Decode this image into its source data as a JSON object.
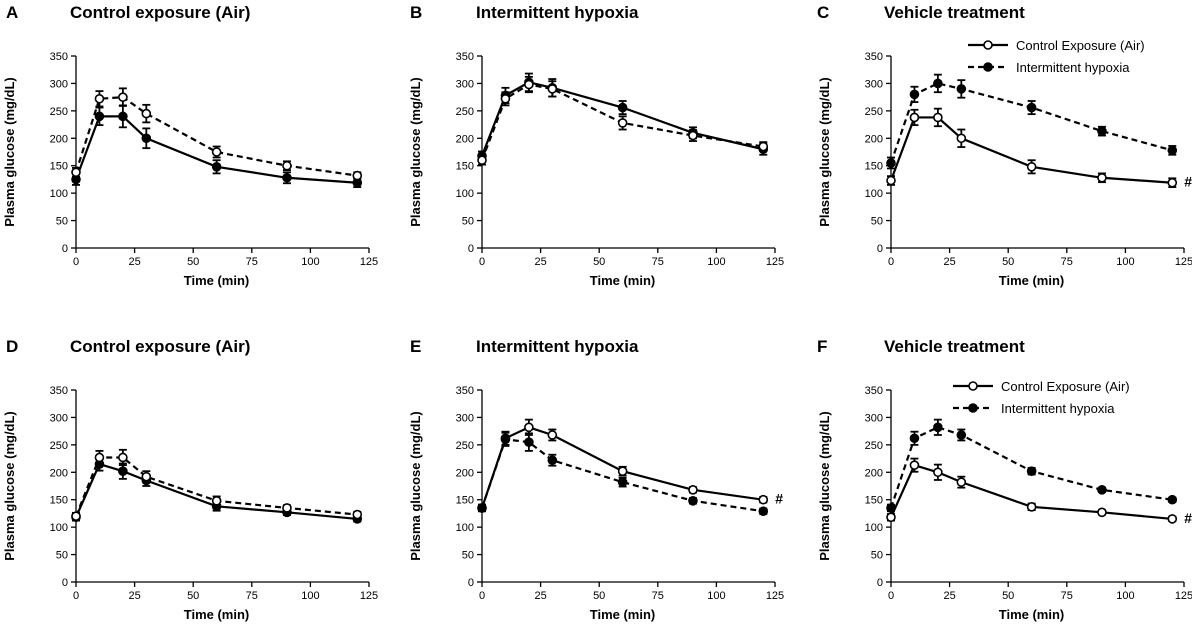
{
  "figure": {
    "x_axis_label": "Time  (min)",
    "y_axis_label": "Plasma glucose (mg/dL)"
  },
  "chart_data": [
    {
      "type": "line",
      "letter": "A",
      "title": "Control exposure (Air)",
      "xlabel": "Time  (min)",
      "ylabel": "Plasma glucose (mg/dL)",
      "xlim": [
        0,
        125
      ],
      "ylim": [
        0,
        350
      ],
      "xticks": [
        0,
        25,
        50,
        75,
        100,
        125
      ],
      "yticks": [
        0,
        50,
        100,
        150,
        200,
        250,
        300,
        350
      ],
      "x": [
        0,
        10,
        20,
        30,
        60,
        90,
        120
      ],
      "series": [
        {
          "name": "Solid line / filled circles",
          "style": "solid",
          "marker": "filled",
          "values": [
            125,
            240,
            240,
            200,
            148,
            128,
            119
          ],
          "errors": [
            10,
            16,
            20,
            18,
            12,
            10,
            8
          ]
        },
        {
          "name": "Dashed line / open circles",
          "style": "dashed",
          "marker": "open",
          "values": [
            138,
            272,
            275,
            245,
            175,
            150,
            132
          ],
          "errors": [
            8,
            14,
            16,
            16,
            10,
            8,
            6
          ]
        }
      ],
      "legend": null,
      "annotation": ""
    },
    {
      "type": "line",
      "letter": "B",
      "title": "Intermittent hypoxia",
      "xlabel": "Time  (min)",
      "ylabel": "Plasma glucose (mg/dL)",
      "xlim": [
        0,
        125
      ],
      "ylim": [
        0,
        350
      ],
      "xticks": [
        0,
        25,
        50,
        75,
        100,
        125
      ],
      "yticks": [
        0,
        50,
        100,
        150,
        200,
        250,
        300,
        350
      ],
      "x": [
        0,
        10,
        20,
        30,
        60,
        90,
        120
      ],
      "series": [
        {
          "name": "Solid line / filled circles",
          "style": "solid",
          "marker": "filled",
          "values": [
            168,
            278,
            302,
            292,
            256,
            210,
            180
          ],
          "errors": [
            8,
            14,
            16,
            16,
            12,
            10,
            10
          ]
        },
        {
          "name": "Dashed line / open circles",
          "style": "dashed",
          "marker": "open",
          "values": [
            160,
            272,
            298,
            290,
            228,
            205,
            185
          ],
          "errors": [
            8,
            12,
            14,
            14,
            12,
            10,
            8
          ]
        }
      ],
      "legend": null,
      "annotation": ""
    },
    {
      "type": "line",
      "letter": "C",
      "title": "Vehicle treatment",
      "xlabel": "Time  (min)",
      "ylabel": "Plasma glucose (mg/dL)",
      "xlim": [
        0,
        125
      ],
      "ylim": [
        0,
        350
      ],
      "xticks": [
        0,
        25,
        50,
        75,
        100,
        125
      ],
      "yticks": [
        0,
        50,
        100,
        150,
        200,
        250,
        300,
        350
      ],
      "x": [
        0,
        10,
        20,
        30,
        60,
        90,
        120
      ],
      "series": [
        {
          "name": "Control Exposure  (Air)",
          "style": "solid",
          "marker": "open",
          "values": [
            123,
            238,
            238,
            200,
            148,
            128,
            119
          ],
          "errors": [
            8,
            14,
            16,
            16,
            12,
            8,
            8
          ]
        },
        {
          "name": "Intermittent hypoxia",
          "style": "dashed",
          "marker": "filled",
          "values": [
            155,
            280,
            300,
            290,
            256,
            213,
            178
          ],
          "errors": [
            10,
            14,
            16,
            16,
            12,
            8,
            8
          ]
        }
      ],
      "legend": "top-right",
      "annotation": "#"
    },
    {
      "type": "line",
      "letter": "D",
      "title": "Control exposure (Air)",
      "xlabel": "Time  (min)",
      "ylabel": "Plasma glucose (mg/dL)",
      "xlim": [
        0,
        125
      ],
      "ylim": [
        0,
        350
      ],
      "xticks": [
        0,
        25,
        50,
        75,
        100,
        125
      ],
      "yticks": [
        0,
        50,
        100,
        150,
        200,
        250,
        300,
        350
      ],
      "x": [
        0,
        10,
        20,
        30,
        60,
        90,
        120
      ],
      "series": [
        {
          "name": "Solid line / filled circles",
          "style": "solid",
          "marker": "filled",
          "values": [
            118,
            215,
            202,
            185,
            138,
            127,
            115
          ],
          "errors": [
            6,
            12,
            14,
            10,
            8,
            5,
            5
          ]
        },
        {
          "name": "Dashed line / open circles",
          "style": "dashed",
          "marker": "open",
          "values": [
            120,
            227,
            227,
            192,
            148,
            135,
            123
          ],
          "errors": [
            6,
            12,
            14,
            10,
            8,
            5,
            5
          ]
        }
      ],
      "legend": null,
      "annotation": ""
    },
    {
      "type": "line",
      "letter": "E",
      "title": "Intermittent hypoxia",
      "xlabel": "Time  (min)",
      "ylabel": "Plasma glucose (mg/dL)",
      "xlim": [
        0,
        125
      ],
      "ylim": [
        0,
        350
      ],
      "xticks": [
        0,
        25,
        50,
        75,
        100,
        125
      ],
      "yticks": [
        0,
        50,
        100,
        150,
        200,
        250,
        300,
        350
      ],
      "x": [
        0,
        10,
        20,
        30,
        60,
        90,
        120
      ],
      "series": [
        {
          "name": "Solid line / open circles",
          "style": "solid",
          "marker": "open",
          "values": [
            135,
            262,
            282,
            268,
            202,
            168,
            150
          ],
          "errors": [
            6,
            12,
            14,
            10,
            8,
            5,
            5
          ]
        },
        {
          "name": "Dashed line / filled circles",
          "style": "dashed",
          "marker": "filled",
          "values": [
            135,
            260,
            255,
            222,
            182,
            148,
            129
          ],
          "errors": [
            6,
            12,
            16,
            10,
            8,
            5,
            5
          ]
        }
      ],
      "legend": null,
      "annotation": "#"
    },
    {
      "type": "line",
      "letter": "F",
      "title": "Vehicle treatment",
      "xlabel": "Time  (min)",
      "ylabel": "Plasma glucose (mg/dL)",
      "xlim": [
        0,
        125
      ],
      "ylim": [
        0,
        350
      ],
      "xticks": [
        0,
        25,
        50,
        75,
        100,
        125
      ],
      "yticks": [
        0,
        50,
        100,
        150,
        200,
        250,
        300,
        350
      ],
      "x": [
        0,
        10,
        20,
        30,
        60,
        90,
        120
      ],
      "series": [
        {
          "name": "Control Exposure  (Air)",
          "style": "solid",
          "marker": "open",
          "values": [
            118,
            213,
            200,
            182,
            137,
            127,
            115
          ],
          "errors": [
            6,
            12,
            14,
            10,
            6,
            4,
            4
          ]
        },
        {
          "name": "Intermittent hypoxia",
          "style": "dashed",
          "marker": "filled",
          "values": [
            135,
            262,
            282,
            268,
            202,
            168,
            150
          ],
          "errors": [
            6,
            12,
            14,
            10,
            6,
            4,
            4
          ]
        }
      ],
      "legend": "top-right",
      "annotation": "#"
    }
  ]
}
